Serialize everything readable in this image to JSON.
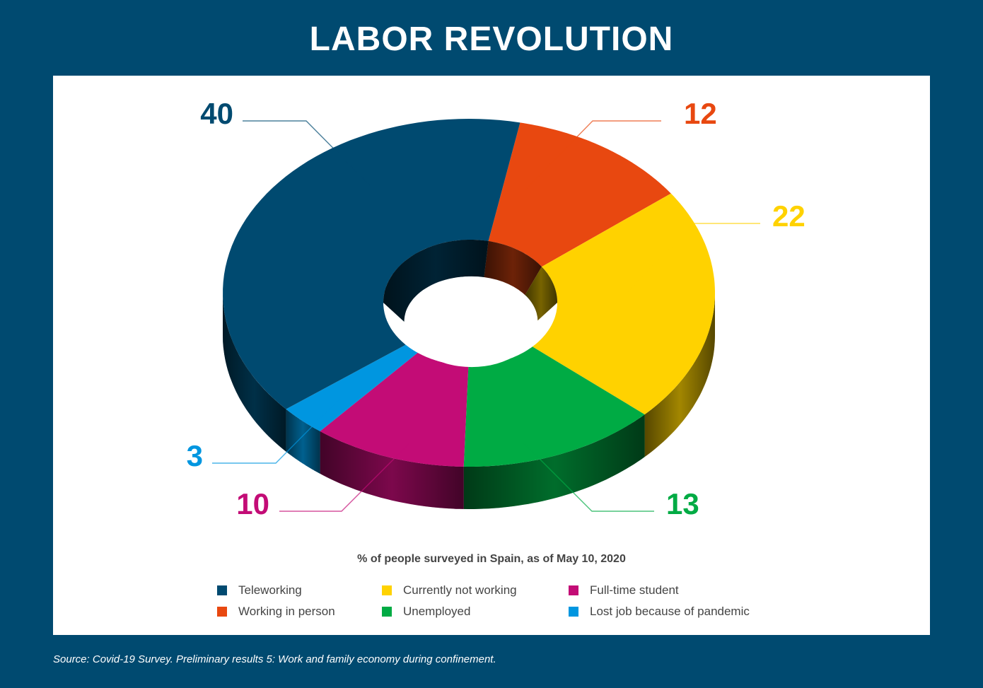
{
  "title": "LABOR REVOLUTION",
  "source": "Source: Covid-19 Survey. Preliminary results 5: Work and family economy during confinement.",
  "chart_data": {
    "type": "pie",
    "style": "3d-donut",
    "subtitle": "% of people surveyed in Spain, as of May 10, 2020",
    "slices": [
      {
        "label": "Working in person",
        "value": 12,
        "color": "#e84810"
      },
      {
        "label": "Currently not working",
        "value": 22,
        "color": "#ffd200"
      },
      {
        "label": "Unemployed",
        "value": 13,
        "color": "#00ab44"
      },
      {
        "label": "Full-time student",
        "value": 10,
        "color": "#c30c76"
      },
      {
        "label": "Lost job because of pandemic",
        "value": 3,
        "color": "#0096e0"
      },
      {
        "label": "Teleworking",
        "value": 40,
        "color": "#004a70"
      }
    ],
    "legend": [
      {
        "label": "Teleworking",
        "color": "#004a70"
      },
      {
        "label": "Working in person",
        "color": "#e84810"
      },
      {
        "label": "Currently not working",
        "color": "#ffd200"
      },
      {
        "label": "Unemployed",
        "color": "#00ab44"
      },
      {
        "label": "Full-time student",
        "color": "#c30c76"
      },
      {
        "label": "Lost job because of pandemic",
        "color": "#0096e0"
      }
    ]
  }
}
